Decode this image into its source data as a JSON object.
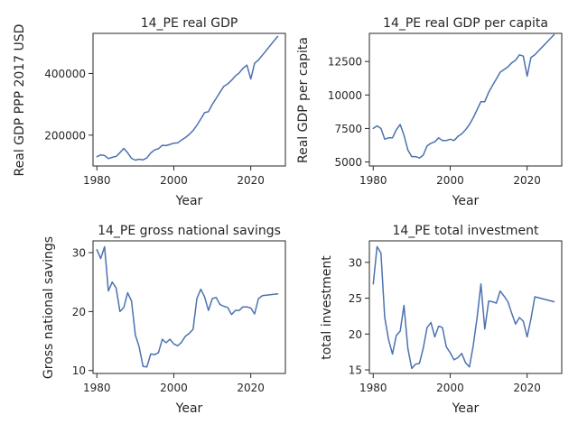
{
  "chart_data": [
    {
      "type": "line",
      "title": "14_PE real GDP",
      "xlabel": "Year",
      "ylabel": "Real GDP PPP 2017 USD",
      "xlim": [
        1979,
        2029
      ],
      "ylim": [
        100000,
        530000
      ],
      "x_ticks": [
        1980,
        2000,
        2020
      ],
      "y_ticks": [
        200000,
        400000
      ],
      "grid": false,
      "color": "#4c72b0",
      "x": [
        1980,
        1981,
        1982,
        1983,
        1984,
        1985,
        1986,
        1987,
        1988,
        1989,
        1990,
        1991,
        1992,
        1993,
        1994,
        1995,
        1996,
        1997,
        1998,
        1999,
        2000,
        2001,
        2002,
        2003,
        2004,
        2005,
        2006,
        2007,
        2008,
        2009,
        2010,
        2011,
        2012,
        2013,
        2014,
        2015,
        2016,
        2017,
        2018,
        2019,
        2020,
        2021,
        2022,
        2023,
        2024,
        2025,
        2026,
        2027
      ],
      "values": [
        130000,
        136000,
        134000,
        124000,
        128000,
        131000,
        143000,
        157000,
        143000,
        125000,
        119000,
        122000,
        120000,
        126000,
        142000,
        152000,
        156000,
        167000,
        166000,
        170000,
        174000,
        175000,
        184000,
        192000,
        202000,
        215000,
        232000,
        252000,
        273000,
        276000,
        300000,
        319000,
        339000,
        358000,
        366000,
        378000,
        392000,
        402000,
        417000,
        427000,
        382000,
        433000,
        444000,
        459000,
        474000,
        490000,
        505000,
        520000
      ]
    },
    {
      "type": "line",
      "title": "14_PE real GDP per capita",
      "xlabel": "Year",
      "ylabel": "Real GDP per capita",
      "xlim": [
        1979,
        2029
      ],
      "ylim": [
        4700,
        14600
      ],
      "x_ticks": [
        1980,
        2000,
        2020
      ],
      "y_ticks": [
        5000,
        7500,
        10000,
        12500
      ],
      "grid": false,
      "color": "#4c72b0",
      "x": [
        1980,
        1981,
        1982,
        1983,
        1984,
        1985,
        1986,
        1987,
        1988,
        1989,
        1990,
        1991,
        1992,
        1993,
        1994,
        1995,
        1996,
        1997,
        1998,
        1999,
        2000,
        2001,
        2002,
        2003,
        2004,
        2005,
        2006,
        2007,
        2008,
        2009,
        2010,
        2011,
        2012,
        2013,
        2014,
        2015,
        2016,
        2017,
        2018,
        2019,
        2020,
        2021,
        2022,
        2023,
        2024,
        2025,
        2026,
        2027
      ],
      "values": [
        7500,
        7700,
        7500,
        6700,
        6800,
        6800,
        7400,
        7800,
        7000,
        5900,
        5400,
        5400,
        5300,
        5500,
        6200,
        6400,
        6500,
        6800,
        6600,
        6600,
        6700,
        6600,
        6900,
        7100,
        7400,
        7800,
        8300,
        8900,
        9500,
        9500,
        10200,
        10700,
        11200,
        11700,
        11900,
        12100,
        12400,
        12600,
        13000,
        12900,
        11400,
        12800,
        13000,
        13300,
        13600,
        13900,
        14200,
        14500
      ]
    },
    {
      "type": "line",
      "title": "14_PE gross national savings",
      "xlabel": "Year",
      "ylabel": "Gross national savings",
      "xlim": [
        1979,
        2029
      ],
      "ylim": [
        9.5,
        32
      ],
      "x_ticks": [
        1980,
        2000,
        2020
      ],
      "y_ticks": [
        10,
        20,
        30
      ],
      "grid": false,
      "color": "#4c72b0",
      "x": [
        1980,
        1981,
        1982,
        1983,
        1984,
        1985,
        1986,
        1987,
        1988,
        1989,
        1990,
        1991,
        1992,
        1993,
        1994,
        1995,
        1996,
        1997,
        1998,
        1999,
        2000,
        2001,
        2002,
        2003,
        2004,
        2005,
        2006,
        2007,
        2008,
        2009,
        2010,
        2011,
        2012,
        2013,
        2014,
        2015,
        2016,
        2017,
        2018,
        2019,
        2020,
        2021,
        2022,
        2023,
        2027
      ],
      "values": [
        30.5,
        29.0,
        31.0,
        23.5,
        25.0,
        24.0,
        20.0,
        20.7,
        23.2,
        21.8,
        16.0,
        14.0,
        10.7,
        10.6,
        12.8,
        12.7,
        13.0,
        15.3,
        14.7,
        15.3,
        14.5,
        14.2,
        14.8,
        15.8,
        16.3,
        17.0,
        22.2,
        23.8,
        22.5,
        20.2,
        22.2,
        22.4,
        21.2,
        20.9,
        20.7,
        19.5,
        20.2,
        20.2,
        20.8,
        20.8,
        20.6,
        19.6,
        22.2,
        22.7,
        23.0
      ]
    },
    {
      "type": "line",
      "title": "14_PE total investment",
      "xlabel": "Year",
      "ylabel": "total investment",
      "xlim": [
        1979,
        2029
      ],
      "ylim": [
        14.5,
        33
      ],
      "x_ticks": [
        1980,
        2000,
        2020
      ],
      "y_ticks": [
        15,
        20,
        25,
        30
      ],
      "grid": false,
      "color": "#4c72b0",
      "x": [
        1980,
        1981,
        1982,
        1983,
        1984,
        1985,
        1986,
        1987,
        1988,
        1989,
        1990,
        1991,
        1992,
        1993,
        1994,
        1995,
        1996,
        1997,
        1998,
        1999,
        2000,
        2001,
        2002,
        2003,
        2004,
        2005,
        2006,
        2007,
        2008,
        2009,
        2010,
        2011,
        2012,
        2013,
        2014,
        2015,
        2016,
        2017,
        2018,
        2019,
        2020,
        2021,
        2022,
        2027
      ],
      "values": [
        27.0,
        32.2,
        31.3,
        22.3,
        19.2,
        17.2,
        19.8,
        20.4,
        24.0,
        18.0,
        15.2,
        15.8,
        15.9,
        18.0,
        20.9,
        21.6,
        19.6,
        21.1,
        20.9,
        18.2,
        17.4,
        16.4,
        16.7,
        17.3,
        16.0,
        15.4,
        18.4,
        22.3,
        27.0,
        20.7,
        24.6,
        24.5,
        24.3,
        26.0,
        25.3,
        24.5,
        22.9,
        21.4,
        22.3,
        21.8,
        19.6,
        22.1,
        25.2,
        24.5
      ]
    }
  ]
}
